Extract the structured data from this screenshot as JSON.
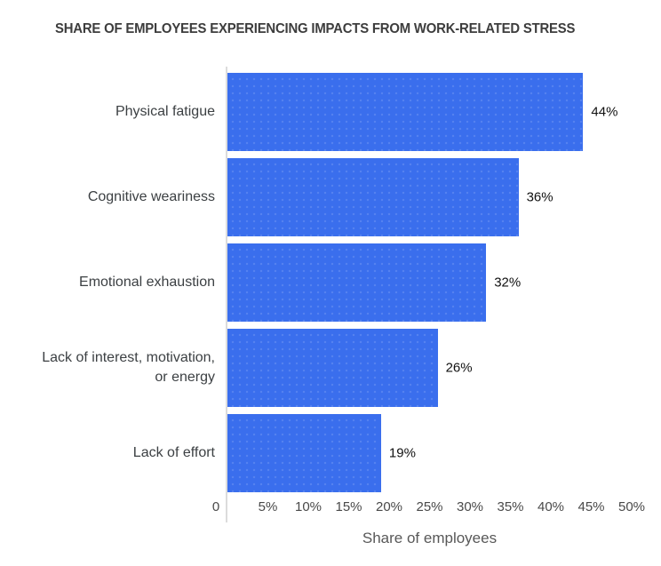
{
  "chart_data": {
    "type": "bar",
    "orientation": "horizontal",
    "title": "SHARE OF EMPLOYEES EXPERIENCING IMPACTS FROM WORK-RELATED STRESS",
    "categories": [
      "Physical fatigue",
      "Cognitive weariness",
      "Emotional exhaustion",
      "Lack of interest, motivation,\nor energy",
      "Lack of effort"
    ],
    "values": [
      44,
      36,
      32,
      26,
      19
    ],
    "value_labels": [
      "44%",
      "36%",
      "32%",
      "26%",
      "19%"
    ],
    "xlabel": "Share of employees",
    "x_ticks": [
      {
        "value": 0,
        "label": "0"
      },
      {
        "value": 5,
        "label": "5%"
      },
      {
        "value": 10,
        "label": "10%"
      },
      {
        "value": 15,
        "label": "15%"
      },
      {
        "value": 20,
        "label": "20%"
      },
      {
        "value": 25,
        "label": "25%"
      },
      {
        "value": 30,
        "label": "30%"
      },
      {
        "value": 35,
        "label": "35%"
      },
      {
        "value": 40,
        "label": "40%"
      },
      {
        "value": 45,
        "label": "45%"
      },
      {
        "value": 50,
        "label": "50%"
      }
    ],
    "xlim": [
      0,
      50
    ],
    "grid": false,
    "legend": "none",
    "colors": {
      "bar": "#3a6eed",
      "title": "#3d3d3d",
      "category_label": "#3c4043",
      "tick_label": "#494949",
      "value_label": "#111111",
      "axis_line": "#dcdcdc",
      "axis_title": "#585858",
      "background": "#ffffff"
    }
  }
}
